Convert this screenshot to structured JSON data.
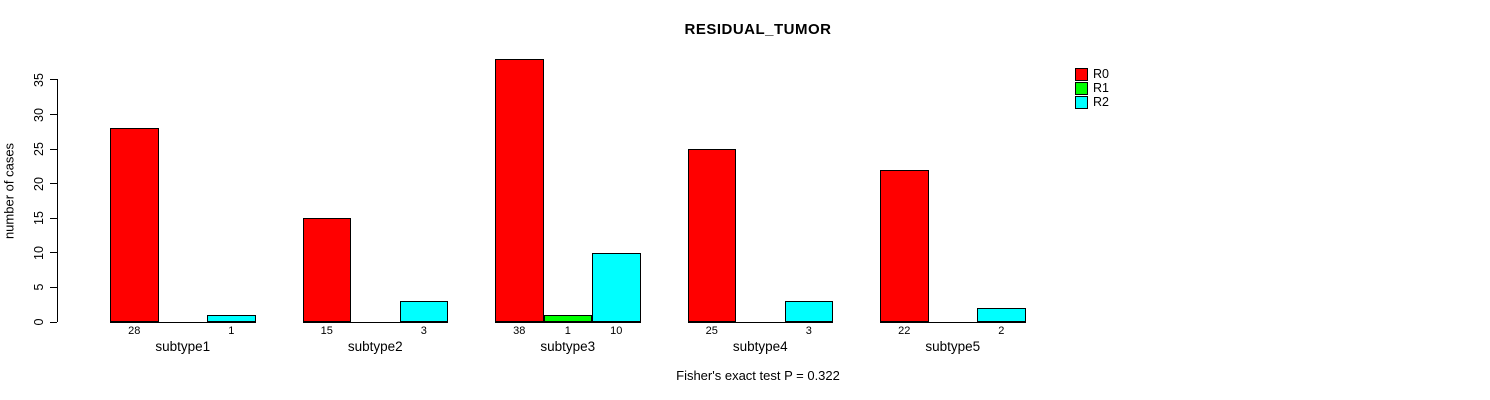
{
  "chart_data": {
    "type": "bar",
    "title": "RESIDUAL_TUMOR",
    "ylabel": "number of cases",
    "xlabel": "",
    "footnote": "Fisher's exact test P = 0.322",
    "categories": [
      "subtype1",
      "subtype2",
      "subtype3",
      "subtype4",
      "subtype5"
    ],
    "series": [
      {
        "name": "R0",
        "color": "#ff0000",
        "values": [
          28,
          15,
          38,
          25,
          22
        ]
      },
      {
        "name": "R1",
        "color": "#00ff00",
        "values": [
          0,
          0,
          1,
          0,
          0
        ]
      },
      {
        "name": "R2",
        "color": "#00ffff",
        "values": [
          1,
          3,
          10,
          3,
          2
        ]
      }
    ],
    "y_ticks": [
      0,
      5,
      10,
      15,
      20,
      25,
      30,
      35
    ],
    "ylim": [
      0,
      38
    ],
    "grid": false,
    "legend_position": "top-right",
    "bar_value_labels": "shown below each nonzero bar",
    "background": "#ffffff",
    "text_color": "#000000"
  }
}
